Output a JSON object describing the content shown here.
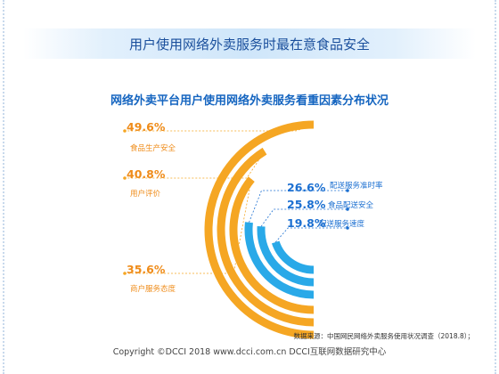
{
  "banner": {
    "title": "用户使用网络外卖服务时最在意食品安全"
  },
  "chart_data": {
    "type": "radial-bar",
    "title": "网络外卖平台用户使用网络外卖服务看重因素分布状况",
    "series": [
      {
        "name": "食品生产安全",
        "value": 49.6,
        "value_label": "49.6%",
        "color": "#f5a623"
      },
      {
        "name": "用户评价",
        "value": 40.8,
        "value_label": "40.8%",
        "color": "#f5a623"
      },
      {
        "name": "商户服务态度",
        "value": 35.6,
        "value_label": "35.6%",
        "color": "#f5a623"
      },
      {
        "name": "配送服务准时率",
        "value": 26.6,
        "value_label": "26.6%",
        "color": "#29a9e8"
      },
      {
        "name": "食品配送安全",
        "value": 25.8,
        "value_label": "25.8%",
        "color": "#29a9e8"
      },
      {
        "name": "配送服务速度",
        "value": 19.8,
        "value_label": "19.8%",
        "color": "#29a9e8"
      }
    ]
  },
  "footer": {
    "source": "数据来源：中国网民网络外卖服务使用状况调查（2018.8）；",
    "copyright": "Copyright ©DCCI 2018  www.dcci.com.cn   DCCI互联网数据研究中心"
  }
}
